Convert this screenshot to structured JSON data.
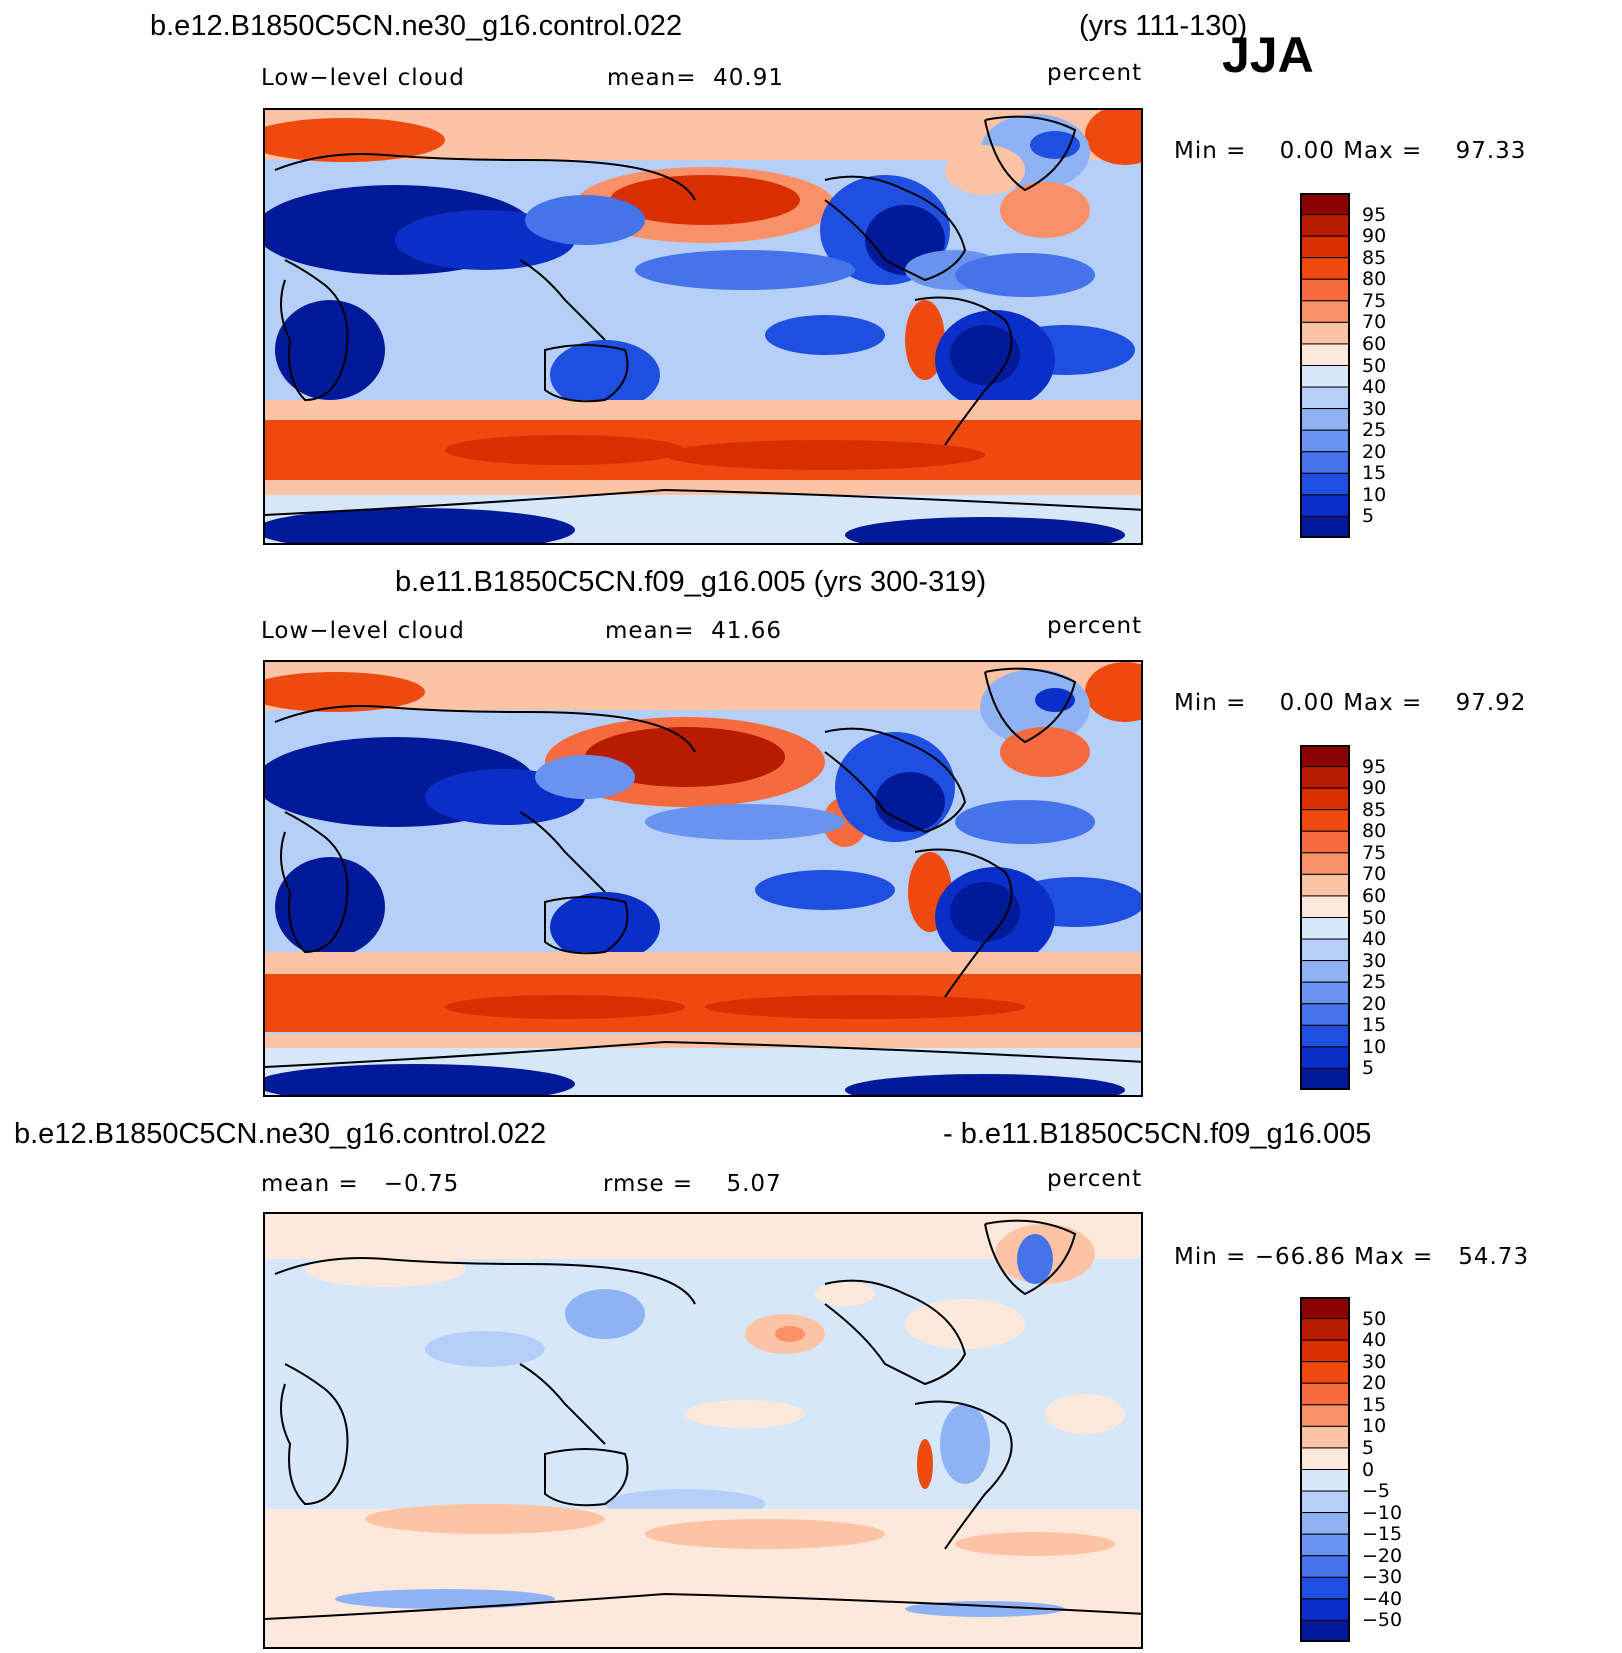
{
  "season": "JJA",
  "panel1": {
    "case": "b.e12.B1850C5CN.ne30_g16.control.022",
    "years": "(yrs 111-130)",
    "field": "Low−level cloud",
    "mean_label": "mean=",
    "mean_value": "40.91",
    "units": "percent",
    "min_label": "Min =",
    "min_value": "0.00",
    "max_label": "Max =",
    "max_value": "97.33"
  },
  "panel2": {
    "title": "b.e11.B1850C5CN.f09_g16.005 (yrs 300-319)",
    "field": "Low−level cloud",
    "mean_label": "mean=",
    "mean_value": "41.66",
    "units": "percent",
    "min_label": "Min =",
    "min_value": "0.00",
    "max_label": "Max =",
    "max_value": "97.92"
  },
  "panel3": {
    "case_a": "b.e12.B1850C5CN.ne30_g16.control.022",
    "case_b": "- b.e11.B1850C5CN.f09_g16.005",
    "mean_label": "mean =",
    "mean_value": "−0.75",
    "rmse_label": "rmse =",
    "rmse_value": "5.07",
    "units": "percent",
    "min_label": "Min =",
    "min_value": "−66.86",
    "max_label": "Max =",
    "max_value": "54.73"
  },
  "colorbar_abs": {
    "labels": [
      "95",
      "90",
      "85",
      "80",
      "75",
      "70",
      "60",
      "50",
      "40",
      "30",
      "25",
      "20",
      "15",
      "10",
      "5"
    ],
    "colors": [
      "#8b0000",
      "#b71c00",
      "#d92f00",
      "#ee4a10",
      "#f66b3d",
      "#fa9067",
      "#fcc3a5",
      "#fde9dc",
      "#d6e7fa",
      "#b5cff8",
      "#8fb2f5",
      "#6a93f0",
      "#4573ea",
      "#1f4fe0",
      "#0a2fc8",
      "#021a9a"
    ]
  },
  "colorbar_diff": {
    "labels": [
      "50",
      "40",
      "30",
      "20",
      "15",
      "10",
      "5",
      "0",
      "−5",
      "−10",
      "−15",
      "−20",
      "−30",
      "−40",
      "−50"
    ],
    "colors": [
      "#8b0000",
      "#b71c00",
      "#d92f00",
      "#ee4a10",
      "#f66b3d",
      "#fa9067",
      "#fcc3a5",
      "#fde9dc",
      "#d6e7fa",
      "#b5cff8",
      "#8fb2f5",
      "#6a93f0",
      "#4573ea",
      "#1f4fe0",
      "#0a2fc8",
      "#021a9a"
    ]
  }
}
